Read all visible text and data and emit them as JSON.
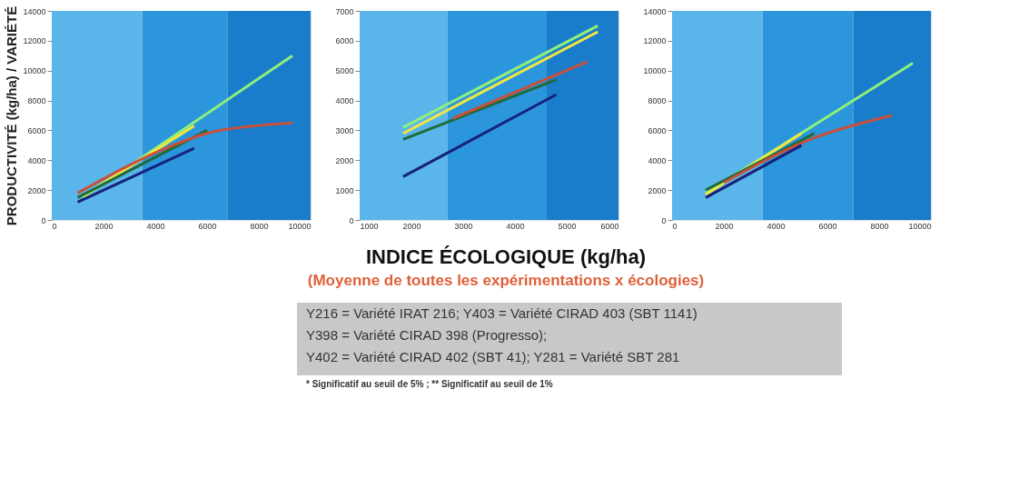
{
  "chart_data": [
    {
      "type": "line",
      "ylabel": "PRODUCTIVITÉ (kg/ha) / VARIÉTÉ",
      "xlim": [
        0,
        10000
      ],
      "xticks": [
        0,
        2000,
        4000,
        6000,
        8000,
        10000
      ],
      "ylim": [
        0,
        14000
      ],
      "yticks": [
        0,
        2000,
        4000,
        6000,
        8000,
        10000,
        12000,
        14000
      ],
      "grid": false,
      "marker": "none",
      "bands": [
        {
          "axis": "x",
          "from": 0,
          "to": 3500,
          "color": "#5ab6ea"
        },
        {
          "axis": "x",
          "from": 3500,
          "to": 6800,
          "color": "#2b96dc"
        },
        {
          "axis": "x",
          "from": 6800,
          "to": 10000,
          "color": "#1a7dcc"
        }
      ],
      "series": [
        {
          "color": "#8ef07a",
          "x": [
            1200,
            9300
          ],
          "values": [
            1500,
            11000
          ]
        },
        {
          "color": "#f2e640",
          "x": [
            1200,
            5500
          ],
          "values": [
            1600,
            6300
          ]
        },
        {
          "color": "#1f6b3a",
          "x": [
            1000,
            6000
          ],
          "values": [
            1500,
            6000
          ]
        },
        {
          "color": "#c8503a",
          "x": [
            1000,
            4000,
            6000,
            8500,
            9300
          ],
          "values": [
            1800,
            4500,
            5800,
            6400,
            6500
          ]
        },
        {
          "color": "#16237a",
          "x": [
            1000,
            5500
          ],
          "values": [
            1200,
            4800
          ]
        }
      ]
    },
    {
      "type": "line",
      "xlabel": "INDICE ÉCOLOGIQUE (kg/ha)",
      "xlim": [
        1000,
        6000
      ],
      "xticks": [
        1000,
        2000,
        3000,
        4000,
        5000,
        6000
      ],
      "ylim": [
        0,
        7000
      ],
      "yticks": [
        0,
        1000,
        2000,
        3000,
        4000,
        5000,
        6000,
        7000
      ],
      "grid": false,
      "marker": "none",
      "bands": [
        {
          "axis": "x",
          "from": 1000,
          "to": 2700,
          "color": "#5ab6ea"
        },
        {
          "axis": "x",
          "from": 2700,
          "to": 4600,
          "color": "#2b96dc"
        },
        {
          "axis": "x",
          "from": 4600,
          "to": 6000,
          "color": "#1a7dcc"
        }
      ],
      "series": [
        {
          "color": "#8ef07a",
          "x": [
            1840,
            5600
          ],
          "values": [
            3100,
            6500
          ]
        },
        {
          "color": "#f2e640",
          "x": [
            1840,
            5600
          ],
          "values": [
            2900,
            6300
          ]
        },
        {
          "color": "#1f6b3a",
          "x": [
            1840,
            4800
          ],
          "values": [
            2700,
            4700
          ]
        },
        {
          "color": "#c8503a",
          "x": [
            2800,
            5400
          ],
          "values": [
            3400,
            5300
          ]
        },
        {
          "color": "#16237a",
          "x": [
            1840,
            4800
          ],
          "values": [
            1450,
            4200
          ]
        }
      ],
      "annotations": [
        "(Moyenne de toutes les expérimentations x écologies)",
        "Y216 = Variété IRAT 216; Y403 = Variété CIRAD 403 (SBT 1141)",
        "Y398 = Variété CIRAD 398 (Progresso);",
        "Y402 = Variété CIRAD 402 (SBT 41); Y281 = Variété SBT 281",
        "* Significatif au seuil de 5% ; ** Significatif au seuil de 1%"
      ]
    },
    {
      "type": "line",
      "xlim": [
        0,
        10000
      ],
      "xticks": [
        0,
        2000,
        4000,
        6000,
        8000,
        10000
      ],
      "ylim": [
        0,
        14000
      ],
      "yticks": [
        0,
        2000,
        4000,
        6000,
        8000,
        10000,
        12000,
        14000
      ],
      "grid": false,
      "marker": "none",
      "bands": [
        {
          "axis": "x",
          "from": 0,
          "to": 3500,
          "color": "#5ab6ea"
        },
        {
          "axis": "x",
          "from": 3500,
          "to": 7000,
          "color": "#2b96dc"
        },
        {
          "axis": "x",
          "from": 7000,
          "to": 10000,
          "color": "#1a7dcc"
        }
      ],
      "series": [
        {
          "color": "#8ef07a",
          "x": [
            1300,
            9300
          ],
          "values": [
            1800,
            10500
          ]
        },
        {
          "color": "#f2e640",
          "x": [
            1300,
            5000
          ],
          "values": [
            1700,
            5800
          ]
        },
        {
          "color": "#1f6b3a",
          "x": [
            1300,
            5500
          ],
          "values": [
            2000,
            5800
          ]
        },
        {
          "color": "#c8503a",
          "x": [
            2000,
            5500,
            8500
          ],
          "values": [
            2500,
            5500,
            7000
          ]
        },
        {
          "color": "#16237a",
          "x": [
            1300,
            5000
          ],
          "values": [
            1500,
            5000
          ]
        }
      ]
    }
  ]
}
